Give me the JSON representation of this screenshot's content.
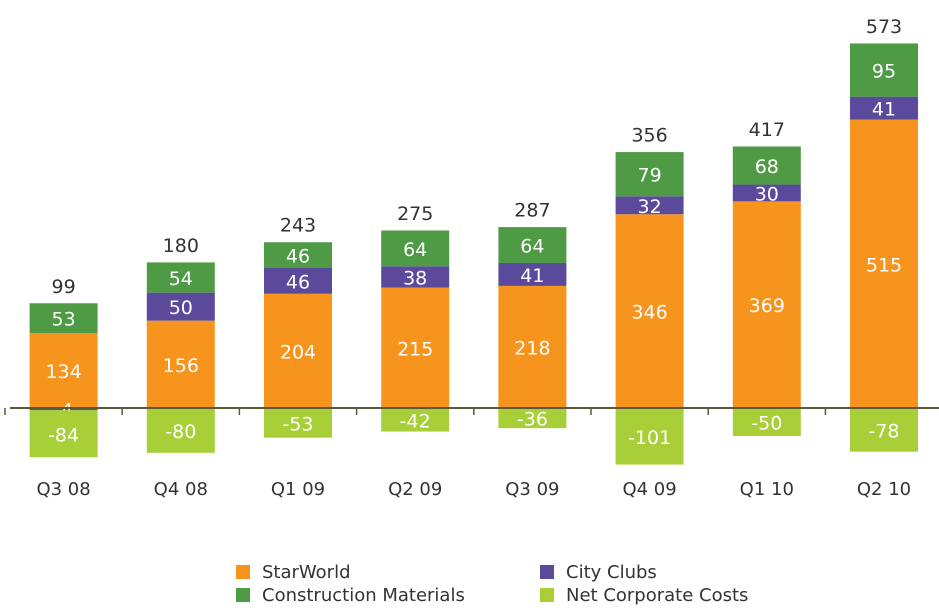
{
  "chart_data": {
    "type": "bar",
    "stacked": true,
    "categories": [
      "Q3 08",
      "Q4 08",
      "Q1 09",
      "Q2 09",
      "Q3 09",
      "Q4 09",
      "Q1 10",
      "Q2 10"
    ],
    "series": [
      {
        "name": "StarWorld",
        "color": "#f7941d",
        "values": [
          134,
          156,
          204,
          215,
          218,
          346,
          369,
          515
        ]
      },
      {
        "name": "City Clubs",
        "color": "#5b4a9c",
        "values": [
          -4,
          50,
          46,
          38,
          41,
          32,
          30,
          41
        ]
      },
      {
        "name": "Construction Materials",
        "color": "#4e9a45",
        "values": [
          53,
          54,
          46,
          64,
          64,
          79,
          68,
          95
        ]
      },
      {
        "name": "Net Corporate Costs",
        "color": "#a8cf38",
        "values": [
          -84,
          -80,
          -53,
          -42,
          -36,
          -101,
          -50,
          -78
        ]
      }
    ],
    "totals": [
      99,
      180,
      243,
      275,
      287,
      356,
      417,
      573
    ],
    "ylim": [
      -150,
      700
    ]
  }
}
